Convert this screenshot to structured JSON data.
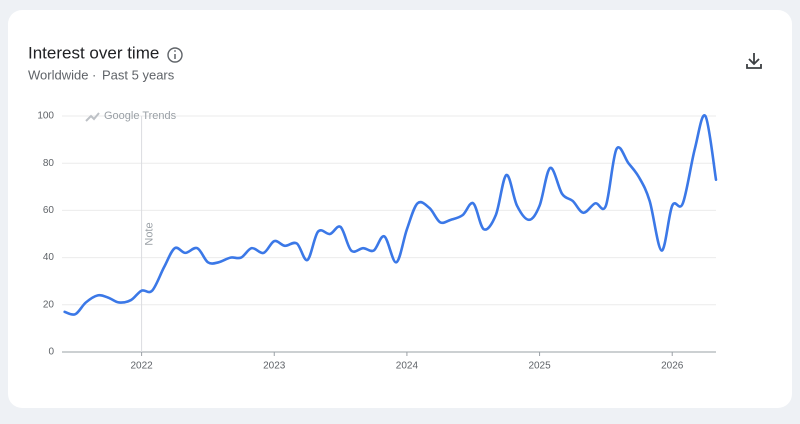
{
  "chart_data": {
    "type": "line",
    "title": "Interest over time",
    "subtitle": [
      "Worldwide",
      "Past 5 years"
    ],
    "watermark": "Google Trends",
    "annotation": {
      "text": "Note",
      "x": 2022
    },
    "x": [
      2021.42,
      2021.5,
      2021.58,
      2021.67,
      2021.75,
      2021.83,
      2021.92,
      2022,
      2022.08,
      2022.17,
      2022.25,
      2022.33,
      2022.42,
      2022.5,
      2022.58,
      2022.67,
      2022.75,
      2022.83,
      2022.92,
      2023,
      2023.08,
      2023.17,
      2023.25,
      2023.33,
      2023.42,
      2023.5,
      2023.58,
      2023.67,
      2023.75,
      2023.83,
      2023.92,
      2024,
      2024.08,
      2024.17,
      2024.25,
      2024.33,
      2024.42,
      2024.5,
      2024.58,
      2024.67,
      2024.75,
      2024.83,
      2024.92,
      2025,
      2025.08,
      2025.17,
      2025.25,
      2025.33,
      2025.42,
      2025.5,
      2025.58,
      2025.67,
      2025.75,
      2025.83,
      2025.92,
      2026,
      2026.08,
      2026.17,
      2026.25,
      2026.33
    ],
    "series": [
      {
        "name": "Interest",
        "color": "#3b78e7",
        "values": [
          17,
          16,
          21,
          24,
          23,
          21,
          22,
          26,
          26,
          36,
          44,
          42,
          44,
          38,
          38,
          40,
          40,
          44,
          42,
          47,
          45,
          46,
          39,
          51,
          50,
          53,
          43,
          44,
          43,
          49,
          38,
          52,
          63,
          61,
          55,
          56,
          58,
          63,
          52,
          58,
          75,
          62,
          56,
          62,
          78,
          67,
          64,
          59,
          63,
          62,
          86,
          80,
          74,
          64,
          43,
          62,
          63,
          86,
          100,
          73
        ]
      }
    ],
    "xlim": [
      2021.4,
      2026.33
    ],
    "xticks": [
      2022,
      2023,
      2024,
      2025,
      2026
    ],
    "ylim": [
      0,
      100
    ],
    "yticks": [
      0,
      20,
      40,
      60,
      80,
      100
    ],
    "grid": true
  }
}
